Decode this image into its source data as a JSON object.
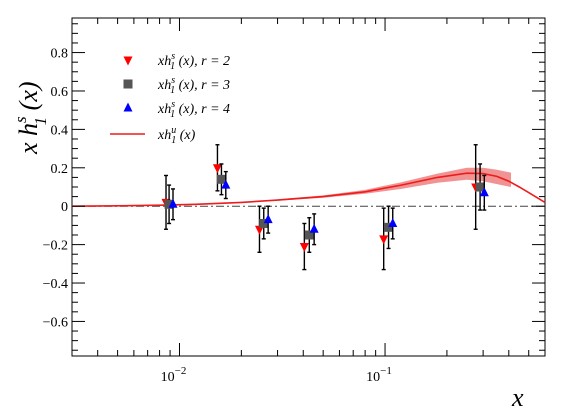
{
  "chart_data": {
    "type": "scatter",
    "xlabel": "x",
    "ylabel": "x h1s(x)",
    "ylabel_parts": {
      "base": "x h",
      "sup": "s",
      "sub": "1",
      "tail": " (x)"
    },
    "xscale": "log",
    "xlim": [
      0.003,
      0.6
    ],
    "ylim": [
      -0.78,
      0.98
    ],
    "xtick_labels": [
      {
        "x": 0.01,
        "base": "10",
        "exp": "−2"
      },
      {
        "x": 0.1,
        "base": "10",
        "exp": "−1"
      }
    ],
    "yticks": [
      -0.6,
      -0.4,
      -0.2,
      0,
      0.2,
      0.4,
      0.6,
      0.8
    ],
    "ytick_labels": [
      "−0.6",
      "−0.4",
      "−0.2",
      "0",
      "0.2",
      "0.4",
      "0.6",
      "0.8"
    ],
    "grid": false,
    "legend_position": "top-left",
    "reference_line": {
      "y": 0,
      "style": "dash-dot",
      "color": "#444444"
    },
    "series": [
      {
        "name": "xh1s (x), r = 2",
        "label_parts": {
          "pre": "xh",
          "sup": "s",
          "sub": "1",
          "post": " (x), r = 2"
        },
        "marker": "triangle-down",
        "color": "#ff0000",
        "x": [
          0.0086,
          0.0153,
          0.0245,
          0.0405,
          0.0985,
          0.276
        ],
        "y": [
          0.02,
          0.2,
          -0.12,
          -0.21,
          -0.17,
          0.1
        ],
        "err": [
          0.14,
          0.12,
          0.12,
          0.12,
          0.16,
          0.22
        ]
      },
      {
        "name": "xh1s (x), r = 3",
        "label_parts": {
          "pre": "xh",
          "sup": "s",
          "sub": "1",
          "post": " (x), r = 3"
        },
        "marker": "square",
        "color": "#555555",
        "x": [
          0.0089,
          0.016,
          0.0257,
          0.0428,
          0.104,
          0.29
        ],
        "y": [
          0.01,
          0.14,
          -0.09,
          -0.15,
          -0.11,
          0.1
        ],
        "err": [
          0.1,
          0.08,
          0.08,
          0.09,
          0.11,
          0.12
        ]
      },
      {
        "name": "xh1s (x), r = 4",
        "label_parts": {
          "pre": "xh",
          "sup": "s",
          "sub": "1",
          "post": " (x), r = 4"
        },
        "marker": "triangle-up",
        "color": "#0000ff",
        "x": [
          0.0093,
          0.0168,
          0.027,
          0.0452,
          0.109,
          0.304
        ],
        "y": [
          0.01,
          0.11,
          -0.07,
          -0.12,
          -0.09,
          0.07
        ],
        "err": [
          0.08,
          0.07,
          0.07,
          0.08,
          0.08,
          0.09
        ]
      }
    ],
    "curve": {
      "name": "xh1u (x)",
      "label_parts": {
        "pre": "xh",
        "sup": "u",
        "sub": "1",
        "post": " (x)"
      },
      "color": "#ee1c1c",
      "band_color": "#f08080",
      "x": [
        0.003,
        0.005,
        0.008,
        0.012,
        0.02,
        0.03,
        0.05,
        0.08,
        0.12,
        0.18,
        0.25,
        0.3,
        0.35,
        0.4,
        0.45,
        0.52,
        0.6
      ],
      "y": [
        0.0,
        0.002,
        0.005,
        0.01,
        0.02,
        0.032,
        0.05,
        0.075,
        0.11,
        0.15,
        0.172,
        0.17,
        0.155,
        0.13,
        0.1,
        0.06,
        0.02
      ],
      "band_x": [
        0.03,
        0.05,
        0.08,
        0.12,
        0.18,
        0.25,
        0.3,
        0.35,
        0.41
      ],
      "band_low": [
        0.028,
        0.044,
        0.065,
        0.09,
        0.122,
        0.138,
        0.13,
        0.115,
        0.1
      ],
      "band_high": [
        0.036,
        0.056,
        0.085,
        0.125,
        0.17,
        0.2,
        0.2,
        0.19,
        0.175
      ]
    }
  }
}
